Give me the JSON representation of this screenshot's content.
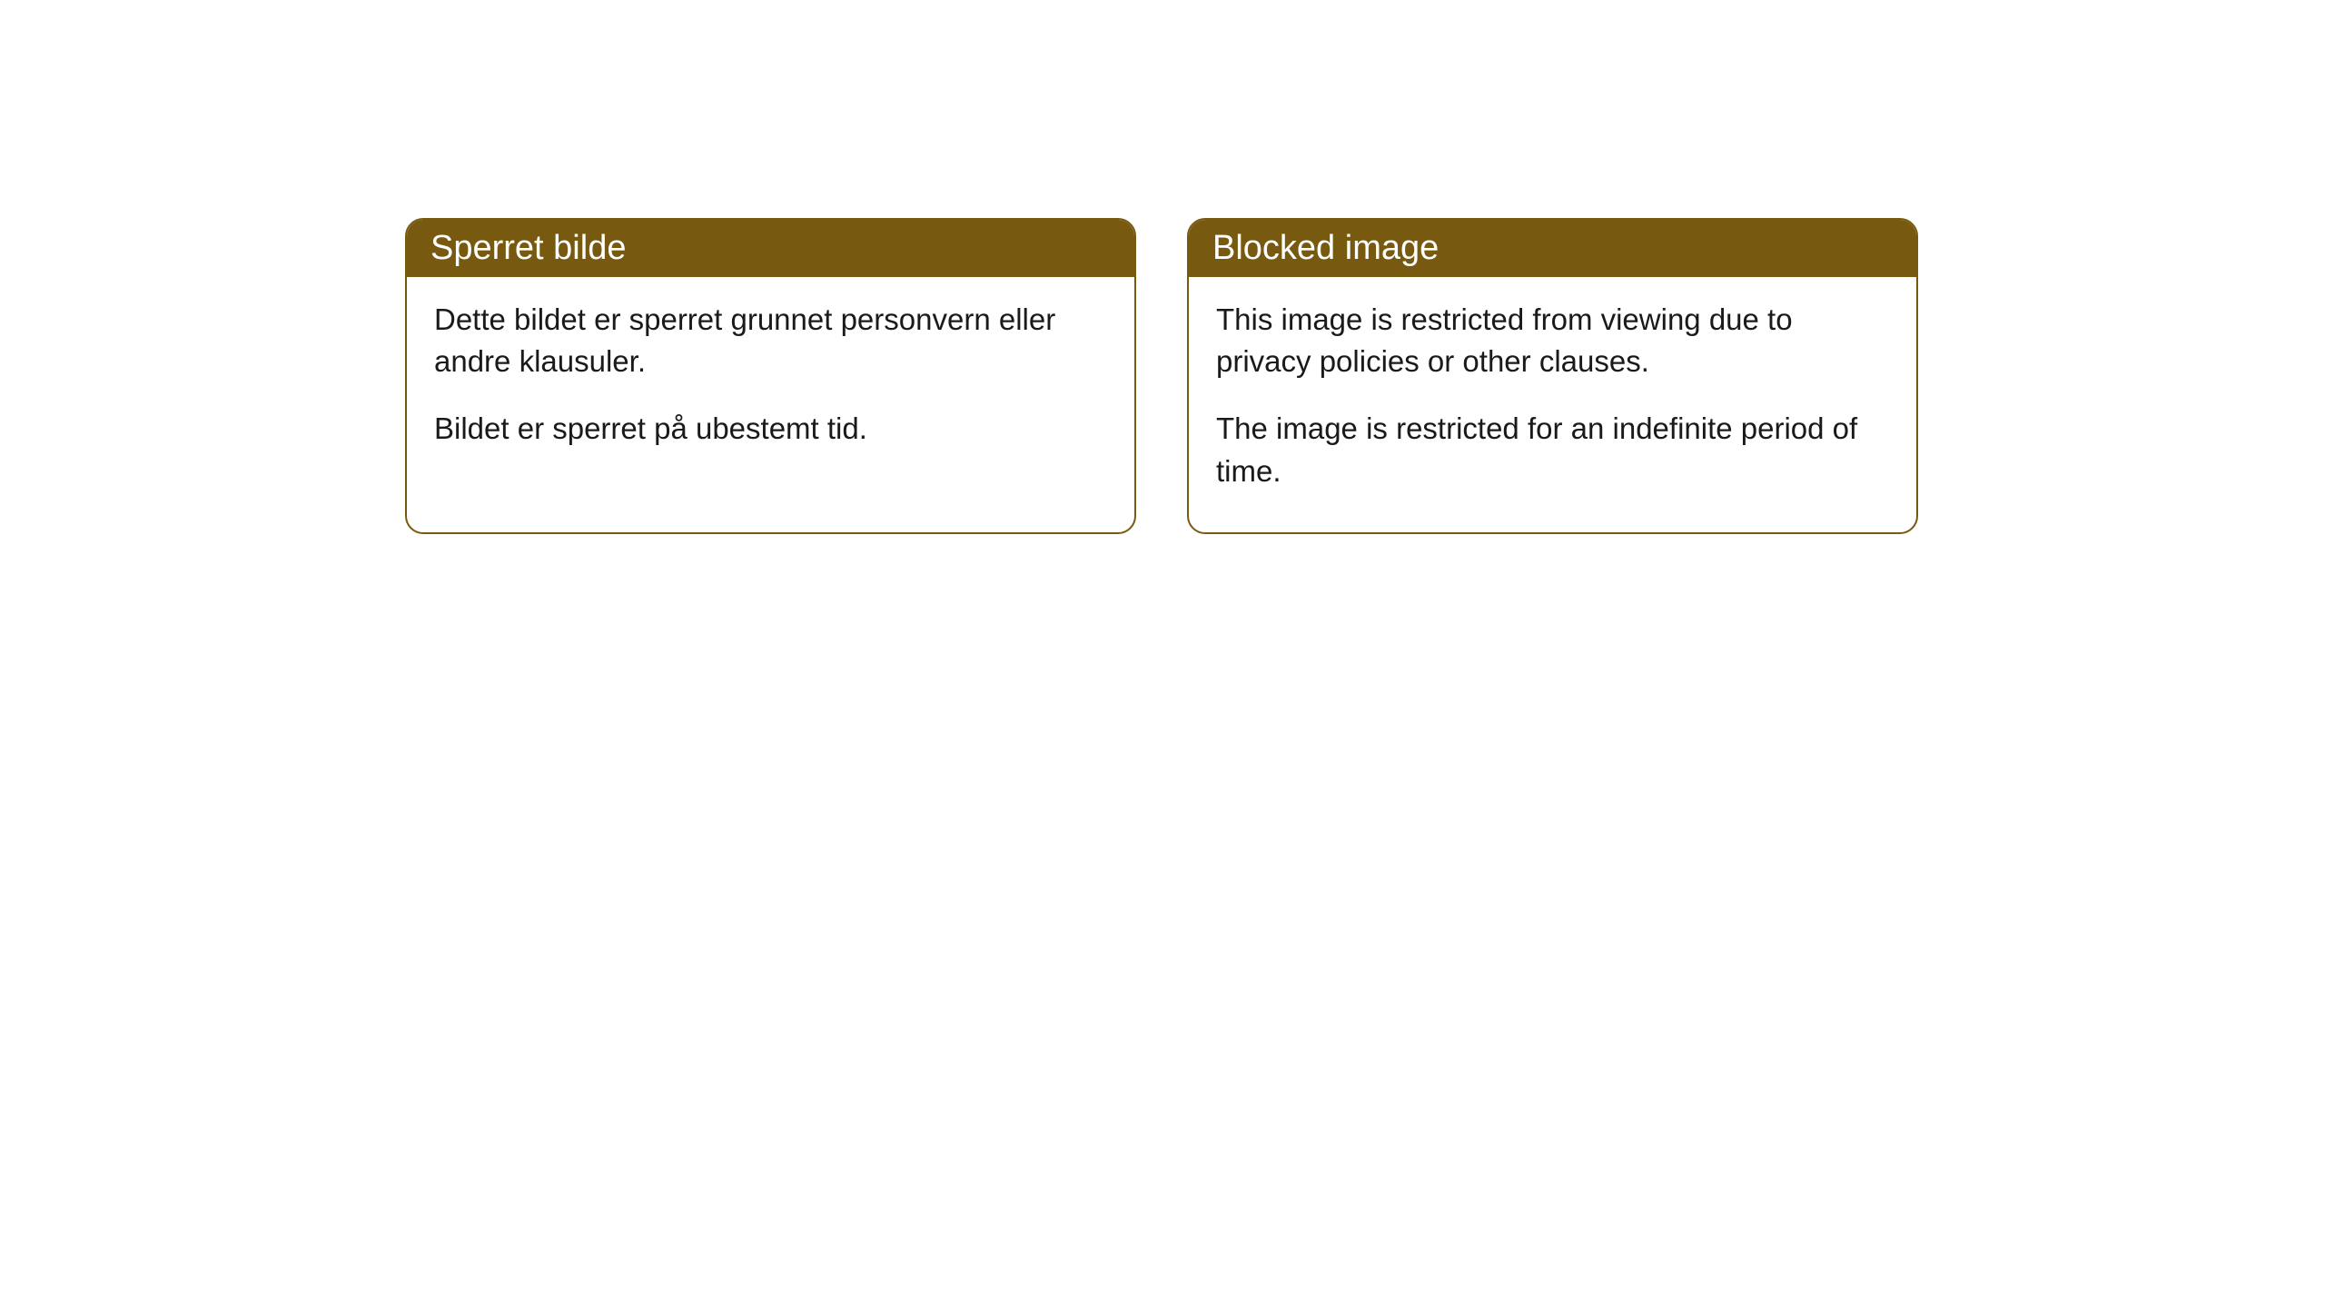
{
  "cards": [
    {
      "title": "Sperret bilde",
      "paragraph1": "Dette bildet er sperret grunnet personvern eller andre klausuler.",
      "paragraph2": "Bildet er sperret på ubestemt tid."
    },
    {
      "title": "Blocked image",
      "paragraph1": "This image is restricted from viewing due to privacy policies or other clauses.",
      "paragraph2": "The image is restricted for an indefinite period of time."
    }
  ],
  "style": {
    "header_background": "#785910",
    "header_text_color": "#ffffff",
    "border_color": "#785910",
    "body_text_color": "#1a1a1a",
    "background_color": "#ffffff",
    "border_radius": 20,
    "header_fontsize": 38,
    "body_fontsize": 33
  }
}
